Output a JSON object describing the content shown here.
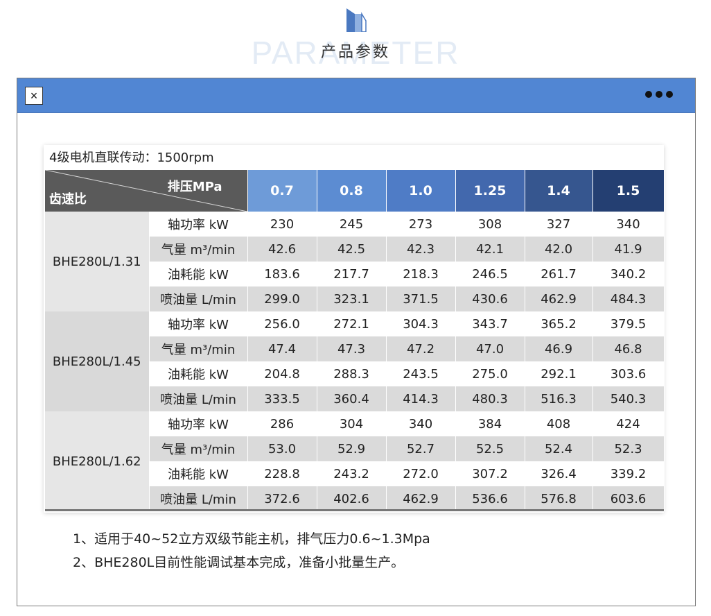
{
  "header": {
    "bg_word": "PARAMETER",
    "title": "产品参数"
  },
  "window": {
    "close_label": "×",
    "bar_color": "#5186d3"
  },
  "table": {
    "heading": "4级电机直联传动：1500rpm",
    "corner_top": "排压MPa",
    "corner_bottom": "齿速比",
    "pressure_columns": [
      {
        "label": "0.7",
        "color": "#6e9bd8"
      },
      {
        "label": "0.8",
        "color": "#5c8cd2"
      },
      {
        "label": "1.0",
        "color": "#4f7cc6"
      },
      {
        "label": "1.25",
        "color": "#4268ad"
      },
      {
        "label": "1.4",
        "color": "#36568f"
      },
      {
        "label": "1.5",
        "color": "#243f72"
      }
    ],
    "groups": [
      {
        "model": "BHE280L/1.31",
        "rows": [
          {
            "metric": "轴功率 kW",
            "values": [
              "230",
              "245",
              "273",
              "308",
              "327",
              "340"
            ]
          },
          {
            "metric": "气量 m³/min",
            "values": [
              "42.6",
              "42.5",
              "42.3",
              "42.1",
              "42.0",
              "41.9"
            ]
          },
          {
            "metric": "油耗能 kW",
            "values": [
              "183.6",
              "217.7",
              "218.3",
              "246.5",
              "261.7",
              "340.2"
            ]
          },
          {
            "metric": "喷油量 L/min",
            "values": [
              "299.0",
              "323.1",
              "371.5",
              "430.6",
              "462.9",
              "484.3"
            ]
          }
        ]
      },
      {
        "model": "BHE280L/1.45",
        "rows": [
          {
            "metric": "轴功率 kW",
            "values": [
              "256.0",
              "272.1",
              "304.3",
              "343.7",
              "365.2",
              "379.5"
            ]
          },
          {
            "metric": "气量 m³/min",
            "values": [
              "47.4",
              "47.3",
              "47.2",
              "47.0",
              "46.9",
              "46.8"
            ]
          },
          {
            "metric": "油耗能 kW",
            "values": [
              "204.8",
              "288.3",
              "243.5",
              "275.0",
              "292.1",
              "303.6"
            ]
          },
          {
            "metric": "喷油量 L/min",
            "values": [
              "333.5",
              "360.4",
              "414.3",
              "480.3",
              "516.3",
              "540.3"
            ]
          }
        ]
      },
      {
        "model": "BHE280L/1.62",
        "rows": [
          {
            "metric": "轴功率 kW",
            "values": [
              "286",
              "304",
              "340",
              "384",
              "408",
              "424"
            ]
          },
          {
            "metric": "气量 m³/min",
            "values": [
              "53.0",
              "52.9",
              "52.7",
              "52.5",
              "52.4",
              "52.3"
            ]
          },
          {
            "metric": "油耗能 kW",
            "values": [
              "228.8",
              "243.2",
              "272.0",
              "307.2",
              "326.4",
              "339.2"
            ]
          },
          {
            "metric": "喷油量 L/min",
            "values": [
              "372.6",
              "402.6",
              "462.9",
              "536.6",
              "576.8",
              "603.6"
            ]
          }
        ]
      }
    ]
  },
  "notes": [
    "1、适用于40~52立方双级节能主机，排气压力0.6~1.3Mpa",
    "2、BHE280L目前性能调试基本完成，准备小批量生产。"
  ]
}
